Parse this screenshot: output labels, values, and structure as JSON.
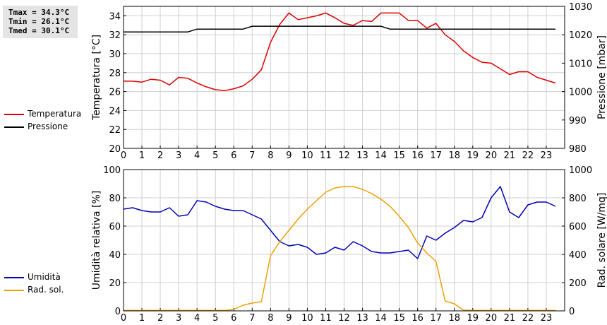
{
  "stats": {
    "tmax": "Tmax = 34.3°C",
    "tmin": "Tmin = 26.1°C",
    "tmed": "Tmed = 30.1°C"
  },
  "legend_top": [
    {
      "label": "Temperatura",
      "color": "#dd0000"
    },
    {
      "label": "Pressione",
      "color": "#000000"
    }
  ],
  "legend_bottom": [
    {
      "label": "Umidità",
      "color": "#0000bb"
    },
    {
      "label": "Rad. sol.",
      "color": "#f0a000"
    }
  ],
  "chart_data": [
    {
      "type": "line",
      "xlim": [
        0,
        24
      ],
      "xticks": [
        "0",
        "1",
        "2",
        "3",
        "4",
        "5",
        "6",
        "7",
        "8",
        "9",
        "10",
        "11",
        "12",
        "13",
        "14",
        "15",
        "16",
        "17",
        "18",
        "19",
        "20",
        "21",
        "22",
        "23"
      ],
      "ylabel": "Temperatura [°C]",
      "ylim": [
        20,
        35
      ],
      "yticks": [
        "20",
        "22",
        "24",
        "26",
        "28",
        "30",
        "32",
        "34"
      ],
      "y2label": "Pressione [mbar]",
      "y2lim": [
        980,
        1030
      ],
      "y2ticks": [
        "980",
        "990",
        "1000",
        "1010",
        "1020",
        "1030"
      ],
      "grid": true,
      "series": [
        {
          "name": "Temperatura",
          "color": "#dd0000",
          "axis": "left",
          "x": [
            0,
            0.5,
            1,
            1.5,
            2,
            2.5,
            3,
            3.5,
            4,
            4.5,
            5,
            5.5,
            6,
            6.5,
            7,
            7.5,
            8,
            8.5,
            9,
            9.5,
            10,
            10.5,
            11,
            11.5,
            12,
            12.5,
            13,
            13.5,
            14,
            14.5,
            15,
            15.5,
            16,
            16.5,
            17,
            17.5,
            18,
            18.5,
            19,
            19.5,
            20,
            20.5,
            21,
            21.5,
            22,
            22.5,
            23,
            23.5
          ],
          "y": [
            27.1,
            27.1,
            27.0,
            27.3,
            27.2,
            26.7,
            27.5,
            27.4,
            26.9,
            26.5,
            26.2,
            26.1,
            26.3,
            26.6,
            27.3,
            28.3,
            31.2,
            33.1,
            34.3,
            33.6,
            33.8,
            34.0,
            34.3,
            33.8,
            33.2,
            33.0,
            33.5,
            33.4,
            34.3,
            34.3,
            34.3,
            33.5,
            33.5,
            32.7,
            33.2,
            32.0,
            31.3,
            30.3,
            29.6,
            29.1,
            29.0,
            28.4,
            27.8,
            28.1,
            28.1,
            27.5,
            27.2,
            26.9
          ]
        },
        {
          "name": "Pressione",
          "color": "#000000",
          "axis": "right",
          "x": [
            0,
            1,
            2,
            3,
            3.5,
            4,
            5,
            6,
            6.5,
            7,
            8,
            9,
            10,
            11,
            12,
            13,
            14,
            14.5,
            15,
            16,
            17,
            18,
            19,
            20,
            21,
            22,
            23,
            23.5
          ],
          "y": [
            1021,
            1021,
            1021,
            1021,
            1021,
            1022,
            1022,
            1022,
            1022,
            1023,
            1023,
            1023,
            1023,
            1023,
            1023,
            1023,
            1023,
            1022,
            1022,
            1022,
            1022,
            1022,
            1022,
            1022,
            1022,
            1022,
            1022,
            1022
          ]
        }
      ]
    },
    {
      "type": "line",
      "xlim": [
        0,
        24
      ],
      "xticks": [
        "0",
        "1",
        "2",
        "3",
        "4",
        "5",
        "6",
        "7",
        "8",
        "9",
        "10",
        "11",
        "12",
        "13",
        "14",
        "15",
        "16",
        "17",
        "18",
        "19",
        "20",
        "21",
        "22",
        "23"
      ],
      "ylabel": "Umidità relativa [%]",
      "ylim": [
        0,
        100
      ],
      "yticks": [
        "0",
        "20",
        "40",
        "60",
        "80",
        "100"
      ],
      "y2label": "Rad. solare [W/mq]",
      "y2lim": [
        0,
        1000
      ],
      "y2ticks": [
        "0",
        "200",
        "400",
        "600",
        "800",
        "1000"
      ],
      "grid": true,
      "series": [
        {
          "name": "Umidità",
          "color": "#0000bb",
          "axis": "left",
          "x": [
            0,
            0.5,
            1,
            1.5,
            2,
            2.5,
            3,
            3.5,
            4,
            4.5,
            5,
            5.5,
            6,
            6.5,
            7,
            7.5,
            8,
            8.5,
            9,
            9.5,
            10,
            10.5,
            11,
            11.5,
            12,
            12.5,
            13,
            13.5,
            14,
            14.5,
            15,
            15.5,
            16,
            16.5,
            17,
            17.5,
            18,
            18.5,
            19,
            19.5,
            20,
            20.5,
            21,
            21.5,
            22,
            22.5,
            23,
            23.5
          ],
          "y": [
            72,
            73,
            71,
            70,
            70,
            73,
            67,
            68,
            78,
            77,
            74,
            72,
            71,
            71,
            68,
            65,
            57,
            49,
            46,
            47,
            45,
            40,
            41,
            45,
            43,
            49,
            46,
            42,
            41,
            41,
            42,
            43,
            37,
            53,
            50,
            55,
            59,
            64,
            63,
            66,
            80,
            88,
            70,
            66,
            75,
            77,
            77,
            74
          ]
        },
        {
          "name": "Rad. sol.",
          "color": "#f0a000",
          "axis": "right",
          "x": [
            0,
            0.5,
            1,
            1.5,
            2,
            2.5,
            3,
            3.5,
            4,
            4.5,
            5,
            5.5,
            6,
            6.5,
            7,
            7.5,
            8,
            8.5,
            9,
            9.5,
            10,
            10.5,
            11,
            11.5,
            12,
            12.5,
            13,
            13.5,
            14,
            14.5,
            15,
            15.5,
            16,
            16.5,
            17,
            17.5,
            18,
            18.5,
            19,
            19.5,
            20,
            20.5,
            21,
            21.5,
            22,
            22.5,
            23,
            23.5
          ],
          "y": [
            3,
            3,
            3,
            3,
            3,
            3,
            3,
            3,
            3,
            3,
            3,
            3,
            10,
            40,
            55,
            65,
            390,
            490,
            570,
            650,
            720,
            780,
            840,
            870,
            880,
            880,
            860,
            830,
            790,
            740,
            670,
            590,
            480,
            410,
            350,
            70,
            50,
            5,
            3,
            3,
            3,
            3,
            3,
            3,
            3,
            3,
            3,
            3
          ]
        }
      ]
    }
  ]
}
